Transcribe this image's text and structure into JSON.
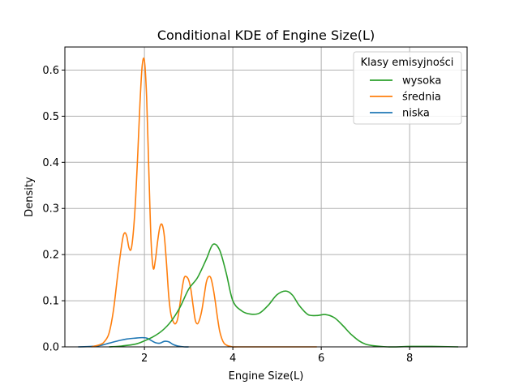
{
  "chart_data": {
    "type": "line",
    "title": "Conditional KDE of Engine Size(L)",
    "xlabel": "Engine Size(L)",
    "ylabel": "Density",
    "xlim": [
      0.2,
      9.3
    ],
    "ylim": [
      0,
      0.65
    ],
    "xticks": [
      2,
      4,
      6,
      8
    ],
    "yticks": [
      0.0,
      0.1,
      0.2,
      0.3,
      0.4,
      0.5,
      0.6
    ],
    "grid": true,
    "legend": {
      "title": "Klasy emisyjności",
      "location": "upper right",
      "entries": [
        "wysoka",
        "średnia",
        "niska"
      ]
    },
    "series": [
      {
        "name": "wysoka",
        "color": "#2ca02c",
        "x": [
          1.2,
          1.5,
          1.8,
          2.0,
          2.2,
          2.4,
          2.6,
          2.8,
          3.0,
          3.2,
          3.4,
          3.55,
          3.7,
          3.85,
          4.0,
          4.2,
          4.4,
          4.6,
          4.8,
          5.0,
          5.2,
          5.35,
          5.5,
          5.7,
          5.9,
          6.1,
          6.3,
          6.5,
          6.7,
          7.0,
          7.5,
          8.0,
          8.5,
          9.1
        ],
        "y": [
          0.0,
          0.002,
          0.006,
          0.013,
          0.022,
          0.035,
          0.055,
          0.085,
          0.125,
          0.15,
          0.19,
          0.222,
          0.21,
          0.16,
          0.1,
          0.078,
          0.071,
          0.073,
          0.09,
          0.113,
          0.121,
          0.112,
          0.09,
          0.07,
          0.068,
          0.07,
          0.063,
          0.045,
          0.025,
          0.006,
          0.0,
          0.001,
          0.001,
          0.0
        ]
      },
      {
        "name": "średnia",
        "color": "#ff7f0e",
        "x": [
          0.8,
          1.0,
          1.1,
          1.2,
          1.3,
          1.4,
          1.5,
          1.55,
          1.6,
          1.65,
          1.7,
          1.75,
          1.8,
          1.85,
          1.9,
          1.95,
          2.0,
          2.05,
          2.1,
          2.15,
          2.2,
          2.25,
          2.3,
          2.35,
          2.4,
          2.45,
          2.5,
          2.55,
          2.6,
          2.65,
          2.7,
          2.75,
          2.8,
          2.85,
          2.9,
          2.95,
          3.0,
          3.05,
          3.1,
          3.15,
          3.2,
          3.25,
          3.3,
          3.35,
          3.4,
          3.45,
          3.5,
          3.55,
          3.6,
          3.65,
          3.7,
          3.75,
          3.8,
          3.85,
          3.9,
          3.95,
          4.0,
          4.1,
          4.3,
          4.6,
          5.0,
          5.5,
          5.9
        ],
        "y": [
          0.0,
          0.005,
          0.012,
          0.03,
          0.08,
          0.16,
          0.23,
          0.247,
          0.24,
          0.215,
          0.212,
          0.25,
          0.32,
          0.42,
          0.53,
          0.61,
          0.62,
          0.54,
          0.38,
          0.23,
          0.17,
          0.19,
          0.23,
          0.26,
          0.265,
          0.24,
          0.18,
          0.11,
          0.07,
          0.055,
          0.05,
          0.06,
          0.09,
          0.125,
          0.15,
          0.152,
          0.145,
          0.125,
          0.09,
          0.058,
          0.05,
          0.06,
          0.08,
          0.11,
          0.14,
          0.152,
          0.15,
          0.13,
          0.1,
          0.065,
          0.035,
          0.018,
          0.008,
          0.004,
          0.002,
          0.001,
          0.0,
          0.0,
          0.0,
          0.0,
          0.0,
          0.0,
          0.0
        ]
      },
      {
        "name": "niska",
        "color": "#1f77b4",
        "x": [
          0.5,
          0.8,
          1.0,
          1.2,
          1.4,
          1.6,
          1.8,
          1.95,
          2.05,
          2.15,
          2.25,
          2.35,
          2.45,
          2.55,
          2.65,
          2.75,
          2.9,
          3.0
        ],
        "y": [
          0.0,
          0.001,
          0.003,
          0.008,
          0.013,
          0.017,
          0.019,
          0.02,
          0.019,
          0.014,
          0.009,
          0.008,
          0.012,
          0.011,
          0.005,
          0.002,
          0.0,
          0.0
        ]
      }
    ]
  }
}
